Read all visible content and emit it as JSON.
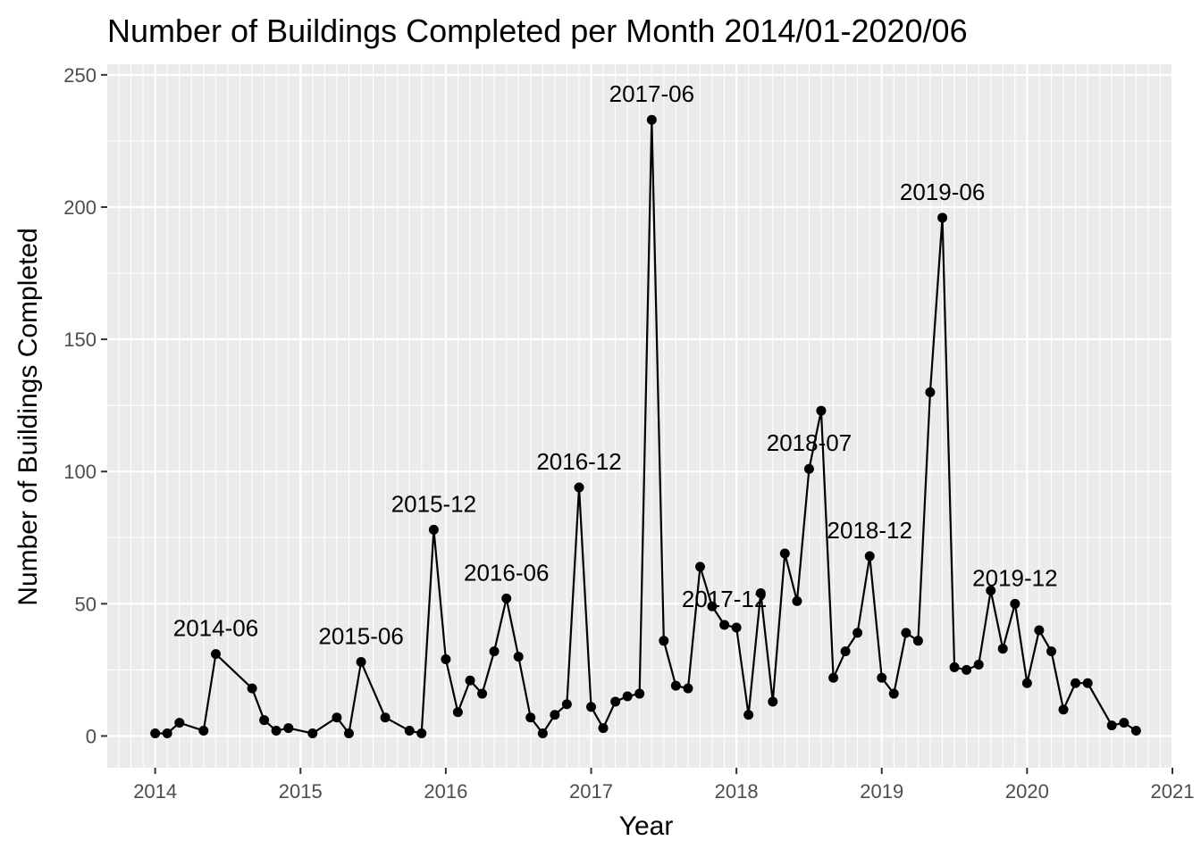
{
  "chart_data": {
    "type": "line",
    "title": "Number of Buildings Completed per Month 2014/01-2020/06",
    "xlabel": "Year",
    "ylabel": "Number of Buildings Completed",
    "xlim": [
      2013.67,
      2021.0
    ],
    "ylim": [
      -12,
      254
    ],
    "x_ticks": [
      "2014",
      "2015",
      "2016",
      "2017",
      "2018",
      "2019",
      "2020",
      "2021"
    ],
    "y_ticks": [
      "0",
      "50",
      "100",
      "150",
      "200",
      "250"
    ],
    "grid": true,
    "legend": "none",
    "series": [
      {
        "x": [
          2014.0,
          2014.083,
          2014.167,
          2014.333,
          2014.417,
          2014.667,
          2014.75,
          2014.833,
          2014.917,
          2015.083,
          2015.25,
          2015.333,
          2015.417,
          2015.583,
          2015.75,
          2015.833,
          2015.917,
          2016.0,
          2016.083,
          2016.167,
          2016.25,
          2016.333,
          2016.417,
          2016.5,
          2016.583,
          2016.667,
          2016.75,
          2016.833,
          2016.917,
          2017.0,
          2017.083,
          2017.167,
          2017.25,
          2017.333,
          2017.417,
          2017.5,
          2017.583,
          2017.667,
          2017.75,
          2017.833,
          2017.917,
          2018.0,
          2018.083,
          2018.167,
          2018.25,
          2018.333,
          2018.417,
          2018.5,
          2018.583,
          2018.667,
          2018.75,
          2018.833,
          2018.917,
          2019.0,
          2019.083,
          2019.167,
          2019.25,
          2019.333,
          2019.417,
          2019.5,
          2019.583,
          2019.667,
          2019.75,
          2019.833,
          2019.917,
          2020.0,
          2020.083,
          2020.167,
          2020.25,
          2020.333,
          2020.417,
          2020.583,
          2020.667,
          2020.75
        ],
        "y": [
          1,
          1,
          5,
          2,
          31,
          18,
          6,
          2,
          3,
          1,
          7,
          1,
          28,
          7,
          2,
          1,
          78,
          29,
          9,
          21,
          16,
          32,
          52,
          30,
          7,
          1,
          8,
          12,
          94,
          11,
          3,
          13,
          15,
          16,
          233,
          36,
          19,
          18,
          64,
          49,
          42,
          41,
          8,
          54,
          13,
          69,
          51,
          101,
          123,
          22,
          32,
          39,
          68,
          22,
          16,
          39,
          36,
          130,
          196,
          26,
          25,
          27,
          55,
          33,
          50,
          20,
          40,
          32,
          10,
          20,
          20,
          4,
          5,
          2
        ]
      }
    ],
    "annotations": [
      {
        "text": "2014-06",
        "x": 2014.417,
        "y": 31
      },
      {
        "text": "2015-06",
        "x": 2015.417,
        "y": 28
      },
      {
        "text": "2015-12",
        "x": 2015.917,
        "y": 78
      },
      {
        "text": "2016-06",
        "x": 2016.417,
        "y": 52
      },
      {
        "text": "2016-12",
        "x": 2016.917,
        "y": 94
      },
      {
        "text": "2017-06",
        "x": 2017.417,
        "y": 233
      },
      {
        "text": "2017-12",
        "x": 2017.917,
        "y": 42
      },
      {
        "text": "2018-07",
        "x": 2018.5,
        "y": 101
      },
      {
        "text": "2018-12",
        "x": 2018.917,
        "y": 68
      },
      {
        "text": "2019-06",
        "x": 2019.417,
        "y": 196
      },
      {
        "text": "2019-12",
        "x": 2019.917,
        "y": 50
      }
    ],
    "colors": {
      "panel": "#ebebeb",
      "grid": "#ffffff",
      "line": "#000000",
      "tick_text": "#4d4d4d"
    }
  }
}
